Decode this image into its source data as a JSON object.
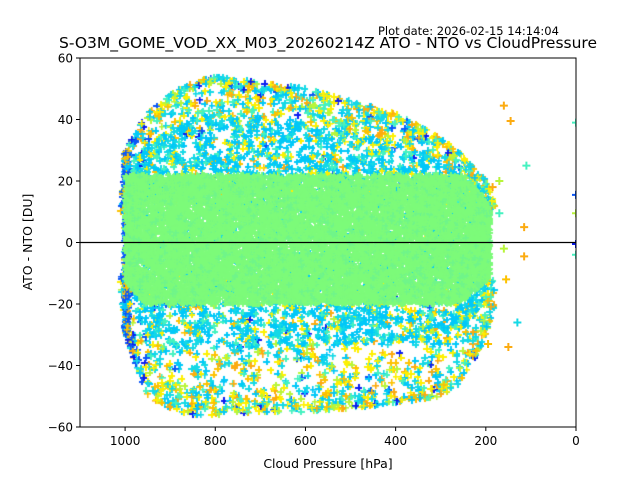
{
  "header": {
    "plot_date": "Plot date: 2026-02-15 14:14:04",
    "title": "S-O3M_GOME_VOD_XX_M03_20260214Z ATO - NTO vs CloudPressure"
  },
  "chart_data": {
    "type": "scatter",
    "title": "S-O3M_GOME_VOD_XX_M03_20260214Z ATO - NTO vs CloudPressure",
    "xlabel": "Cloud Pressure [hPa]",
    "ylabel": "ATO - NTO [DU]",
    "xlim": [
      1100,
      0
    ],
    "ylim": [
      -60,
      60
    ],
    "x_inverted": true,
    "xticks": [
      1000,
      800,
      600,
      400,
      200,
      0
    ],
    "xtick_labels": [
      "1000",
      "800",
      "600",
      "400",
      "200",
      "0"
    ],
    "yticks": [
      60,
      40,
      20,
      0,
      -20,
      -40,
      -60
    ],
    "ytick_labels": [
      "60",
      "40",
      "20",
      "0",
      "−20",
      "−40",
      "−60"
    ],
    "reference_line_y": 0,
    "marker": "+",
    "grid": false,
    "legend": "none",
    "series_colors": [
      "#7dfb7a",
      "#6ff58a",
      "#15d9e6",
      "#00c8f8",
      "#45f2c0",
      "#b8f53a",
      "#fef000",
      "#fdc200",
      "#fcab10",
      "#0a56f8",
      "#0a1cf0"
    ],
    "core_region": {
      "x_range": [
        1000,
        190
      ],
      "y_range": [
        -20,
        22
      ]
    },
    "envelope": {
      "x": [
        1010,
        1000,
        950,
        900,
        850,
        800,
        700,
        600,
        500,
        400,
        300,
        250,
        200,
        180
      ],
      "y_max": [
        10,
        30,
        42,
        48,
        52,
        54,
        52,
        50,
        46,
        42,
        34,
        28,
        20,
        12
      ],
      "y_min": [
        -12,
        -30,
        -50,
        -54,
        -56,
        -56,
        -55,
        -55,
        -54,
        -52,
        -50,
        -45,
        -30,
        -20
      ]
    },
    "outliers": [
      {
        "x": 160,
        "y": 44.5,
        "color": "#fcab10"
      },
      {
        "x": 145,
        "y": 39.5,
        "color": "#fcab10"
      },
      {
        "x": 110,
        "y": 25,
        "color": "#45f2c0"
      },
      {
        "x": 170,
        "y": 20,
        "color": "#b8f53a"
      },
      {
        "x": 185,
        "y": 18,
        "color": "#fcab10"
      },
      {
        "x": 170,
        "y": 9.5,
        "color": "#45f2c0"
      },
      {
        "x": 115,
        "y": 5,
        "color": "#fcab10"
      },
      {
        "x": 160,
        "y": -2,
        "color": "#b8f53a"
      },
      {
        "x": 115,
        "y": -4.5,
        "color": "#fcab10"
      },
      {
        "x": 155,
        "y": -12,
        "color": "#fdc200"
      },
      {
        "x": 130,
        "y": -26,
        "color": "#15d9e6"
      },
      {
        "x": 150,
        "y": -34,
        "color": "#fcab10"
      },
      {
        "x": 195,
        "y": -33,
        "color": "#fdc200"
      },
      {
        "x": 0,
        "y": 39,
        "color": "#45f2c0"
      },
      {
        "x": 0,
        "y": 15.5,
        "color": "#0a56f8"
      },
      {
        "x": 0,
        "y": 9.5,
        "color": "#b8f53a"
      },
      {
        "x": 0,
        "y": -0.5,
        "color": "#0a1cf0"
      },
      {
        "x": 0,
        "y": -4,
        "color": "#45f2c0"
      }
    ]
  }
}
